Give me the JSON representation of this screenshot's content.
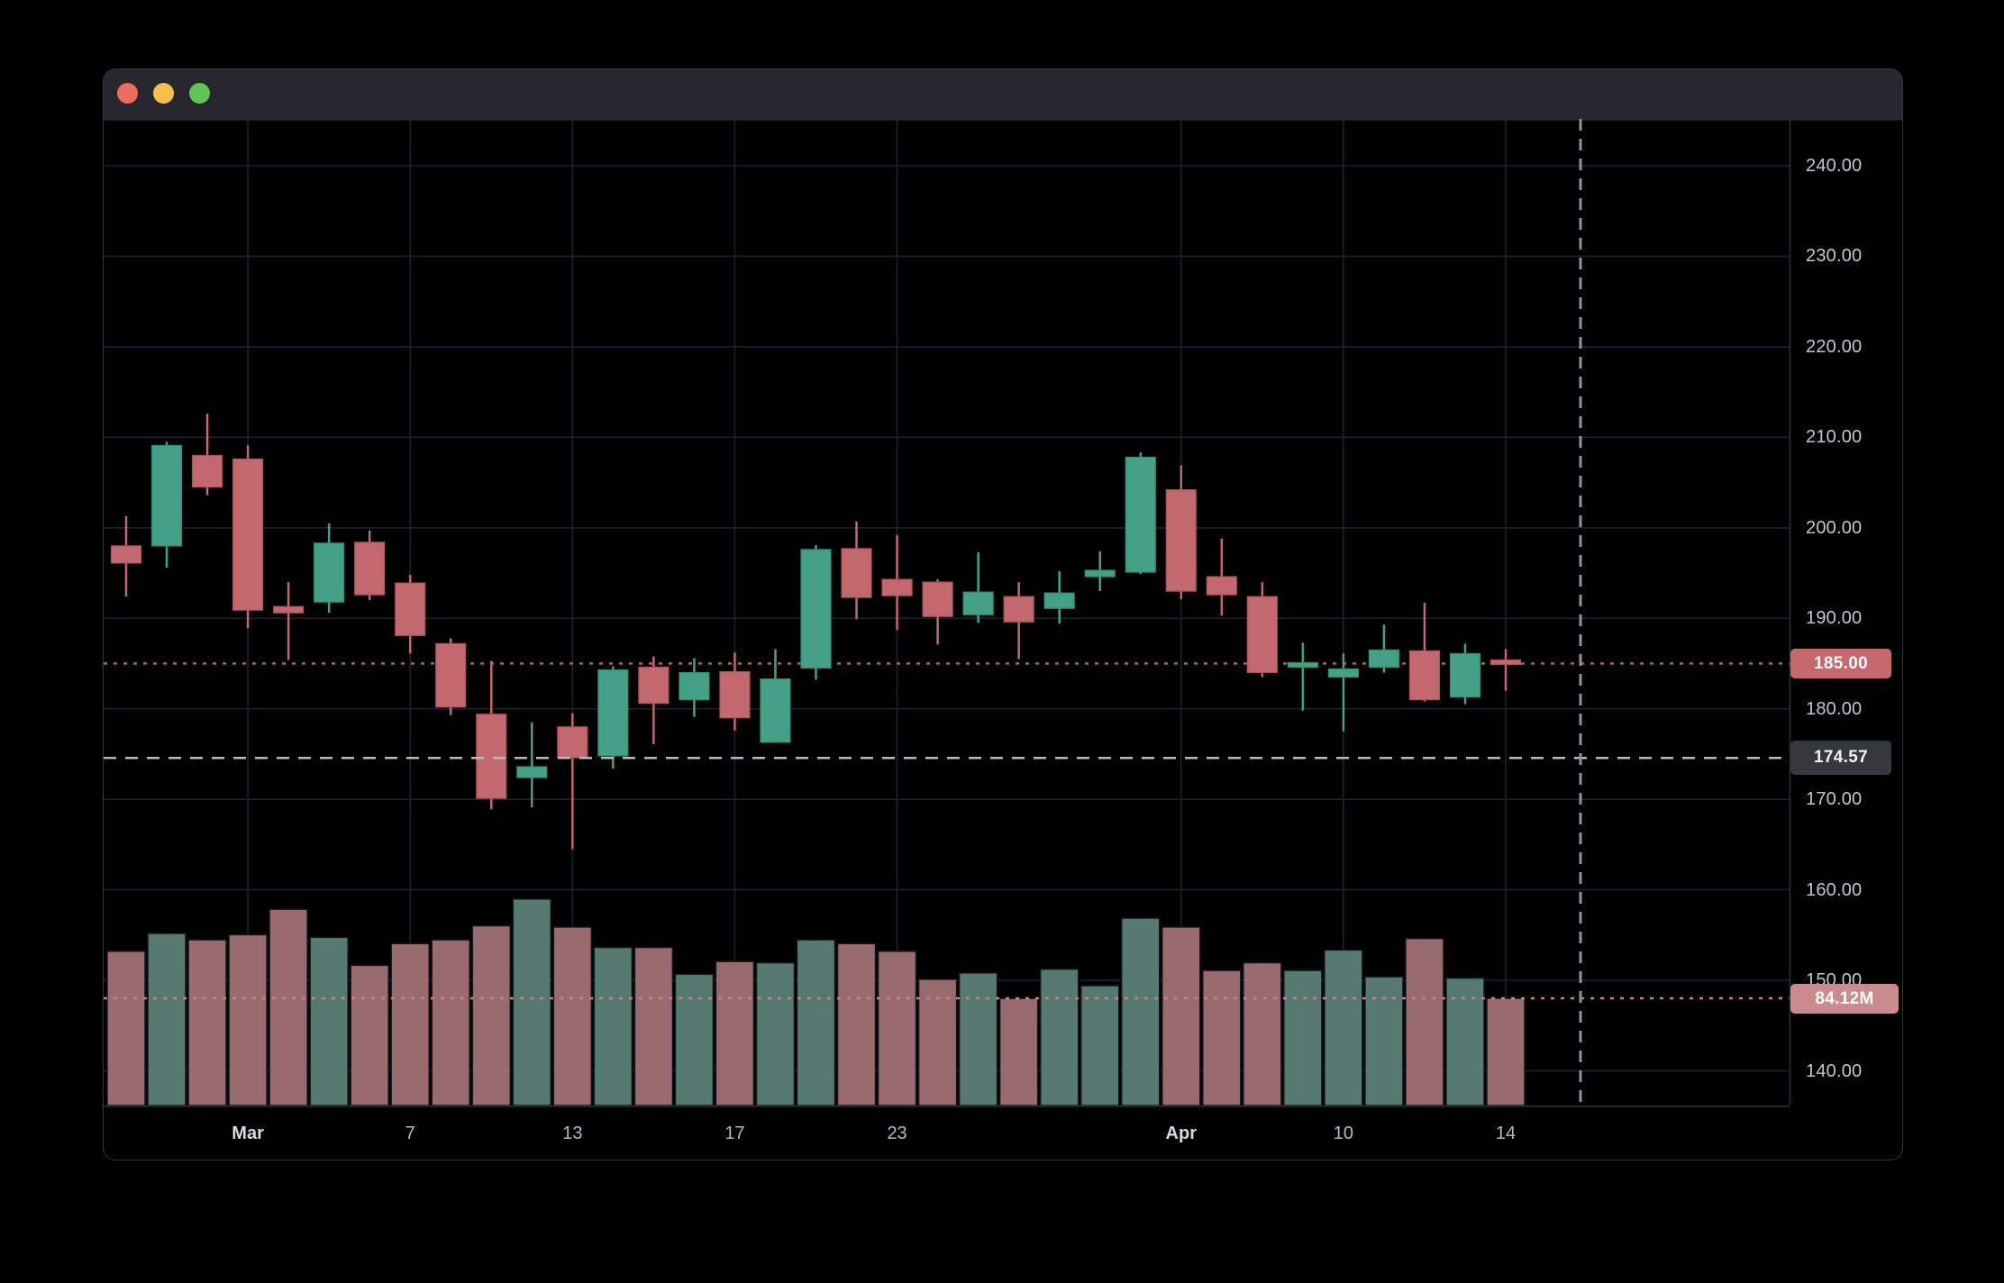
{
  "window": {
    "traffic_lights": [
      {
        "name": "close",
        "color": "#ed6a5f"
      },
      {
        "name": "minimize",
        "color": "#f5bf4f"
      },
      {
        "name": "zoom",
        "color": "#61c454"
      }
    ]
  },
  "chart_data": {
    "type": "candlestick_with_volume",
    "title": "",
    "grid": true,
    "legend_position": "none",
    "price_axis": {
      "side": "right",
      "min": 136,
      "max": 245,
      "tick_step": 10,
      "ticks": [
        "240.00",
        "230.00",
        "220.00",
        "210.00",
        "200.00",
        "190.00",
        "180.00",
        "170.00",
        "160.00",
        "150.00",
        "140.00"
      ],
      "tick_values": [
        240,
        230,
        220,
        210,
        200,
        190,
        180,
        170,
        160,
        150,
        140
      ]
    },
    "time_axis": {
      "labels": [
        {
          "text": "Mar",
          "index": 3,
          "month": true
        },
        {
          "text": "7",
          "index": 7,
          "month": false
        },
        {
          "text": "13",
          "index": 11,
          "month": false
        },
        {
          "text": "17",
          "index": 15,
          "month": false
        },
        {
          "text": "23",
          "index": 19,
          "month": false
        },
        {
          "text": "Apr",
          "index": 26,
          "month": true
        },
        {
          "text": "10",
          "index": 30,
          "month": false
        },
        {
          "text": "14",
          "index": 34,
          "month": false
        }
      ]
    },
    "candles": [
      {
        "o": 198.0,
        "h": 201.3,
        "l": 192.4,
        "c": 196.1,
        "v": 121
      },
      {
        "o": 198.0,
        "h": 209.5,
        "l": 195.6,
        "c": 209.1,
        "v": 135
      },
      {
        "o": 208.0,
        "h": 212.6,
        "l": 203.6,
        "c": 204.5,
        "v": 130
      },
      {
        "o": 207.6,
        "h": 209.1,
        "l": 188.9,
        "c": 190.9,
        "v": 134
      },
      {
        "o": 191.3,
        "h": 194.0,
        "l": 185.4,
        "c": 190.6,
        "v": 154
      },
      {
        "o": 191.8,
        "h": 200.5,
        "l": 190.6,
        "c": 198.3,
        "v": 132
      },
      {
        "o": 198.4,
        "h": 199.7,
        "l": 192.0,
        "c": 192.6,
        "v": 110
      },
      {
        "o": 193.9,
        "h": 194.8,
        "l": 186.1,
        "c": 188.1,
        "v": 127
      },
      {
        "o": 187.2,
        "h": 187.8,
        "l": 179.3,
        "c": 180.2,
        "v": 130
      },
      {
        "o": 179.4,
        "h": 185.3,
        "l": 168.9,
        "c": 170.1,
        "v": 141
      },
      {
        "o": 172.4,
        "h": 178.5,
        "l": 169.1,
        "c": 173.6,
        "v": 162
      },
      {
        "o": 178.0,
        "h": 179.5,
        "l": 164.5,
        "c": 174.6,
        "v": 140
      },
      {
        "o": 174.8,
        "h": 184.7,
        "l": 173.4,
        "c": 184.3,
        "v": 124
      },
      {
        "o": 184.6,
        "h": 185.8,
        "l": 176.1,
        "c": 180.6,
        "v": 124
      },
      {
        "o": 181.0,
        "h": 185.6,
        "l": 179.1,
        "c": 184.0,
        "v": 103
      },
      {
        "o": 184.1,
        "h": 186.2,
        "l": 177.6,
        "c": 179.0,
        "v": 113
      },
      {
        "o": 176.3,
        "h": 186.6,
        "l": 176.3,
        "c": 183.3,
        "v": 112
      },
      {
        "o": 184.5,
        "h": 198.1,
        "l": 183.2,
        "c": 197.6,
        "v": 130
      },
      {
        "o": 197.7,
        "h": 200.7,
        "l": 189.9,
        "c": 192.3,
        "v": 127
      },
      {
        "o": 194.3,
        "h": 199.2,
        "l": 188.7,
        "c": 192.5,
        "v": 121
      },
      {
        "o": 194.0,
        "h": 194.3,
        "l": 187.1,
        "c": 190.2,
        "v": 99
      },
      {
        "o": 190.4,
        "h": 197.3,
        "l": 189.5,
        "c": 192.9,
        "v": 104
      },
      {
        "o": 192.4,
        "h": 194.0,
        "l": 185.5,
        "c": 189.6,
        "v": 84
      },
      {
        "o": 191.1,
        "h": 195.2,
        "l": 189.4,
        "c": 192.8,
        "v": 107
      },
      {
        "o": 194.6,
        "h": 197.4,
        "l": 193.0,
        "c": 195.3,
        "v": 94
      },
      {
        "o": 195.1,
        "h": 208.3,
        "l": 194.9,
        "c": 207.8,
        "v": 147
      },
      {
        "o": 204.2,
        "h": 206.9,
        "l": 192.1,
        "c": 193.0,
        "v": 140
      },
      {
        "o": 194.6,
        "h": 198.8,
        "l": 190.3,
        "c": 192.6,
        "v": 106
      },
      {
        "o": 192.4,
        "h": 194.0,
        "l": 183.5,
        "c": 184.0,
        "v": 112
      },
      {
        "o": 184.6,
        "h": 187.3,
        "l": 179.8,
        "c": 185.1,
        "v": 106
      },
      {
        "o": 183.5,
        "h": 186.1,
        "l": 177.5,
        "c": 184.4,
        "v": 122
      },
      {
        "o": 184.6,
        "h": 189.3,
        "l": 184.0,
        "c": 186.5,
        "v": 101
      },
      {
        "o": 186.4,
        "h": 191.7,
        "l": 180.8,
        "c": 181.0,
        "v": 131
      },
      {
        "o": 181.3,
        "h": 187.2,
        "l": 180.5,
        "c": 186.1,
        "v": 100
      },
      {
        "o": 185.4,
        "h": 186.6,
        "l": 182.0,
        "c": 185.0,
        "v": 84.12
      }
    ],
    "volume_unit": "M",
    "last_price": 185.0,
    "last_price_label": "185.00",
    "crosshair_price": 174.57,
    "crosshair_price_label": "174.57",
    "last_volume": 84.12,
    "last_volume_label": "84.12M",
    "colors": {
      "up": "#44a187",
      "down": "#c2686e",
      "up_border": "#2f8d74",
      "down_border": "#a85459",
      "vol_up": "#567a6f",
      "vol_down": "#996b6e",
      "grid": "#1d2132",
      "separator": "#2b2d3e",
      "last_price_line": "#b4585e",
      "volume_line": "#c98186",
      "crosshair_h": "#b7b9bc",
      "crosshair_v": "#90939a",
      "axis_text": "#c3c6cd",
      "badge_last_bg": "#c5696e",
      "badge_crosshair_bg": "#35383d",
      "badge_volume_bg": "#c98b8e"
    }
  }
}
